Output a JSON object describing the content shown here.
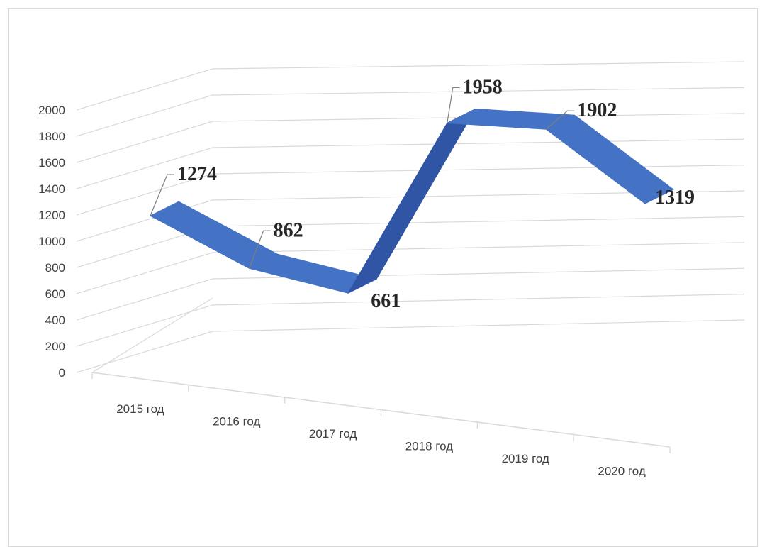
{
  "chart_data": {
    "type": "line",
    "style": "3d-ribbon",
    "categories": [
      "2015 год",
      "2016 год",
      "2017 год",
      "2018 год",
      "2019 год",
      "2020 год"
    ],
    "series": [
      {
        "values": [
          1274,
          862,
          661,
          1958,
          1902,
          1319
        ]
      }
    ],
    "data_labels": [
      "1274",
      "862",
      "661",
      "1958",
      "1902",
      "1319"
    ],
    "ylim": [
      0,
      2000
    ],
    "y_ticks": [
      "0",
      "200",
      "400",
      "600",
      "800",
      "1000",
      "1200",
      "1400",
      "1600",
      "1800",
      "2000"
    ],
    "grid": true,
    "legend": "none",
    "colors": {
      "ribbon_top": "#4472C4",
      "ribbon_front": "#2F55A4",
      "ribbon_dark": "#1F3864",
      "gridline": "#d9d9d9",
      "axis_text": "#404040"
    }
  }
}
